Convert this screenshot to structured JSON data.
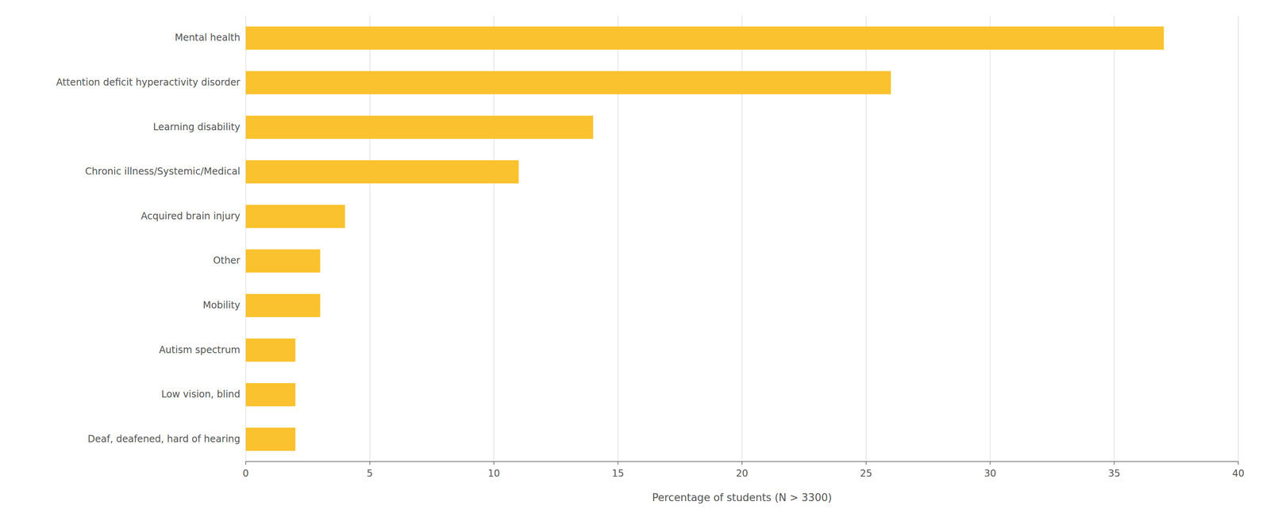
{
  "chart_data": {
    "type": "bar",
    "orientation": "horizontal",
    "categories": [
      "Mental health",
      "Attention deficit hyperactivity disorder",
      "Learning disability",
      "Chronic illness/Systemic/Medical",
      "Acquired brain injury",
      "Other",
      "Mobility",
      "Autism spectrum",
      "Low vision, blind",
      "Deaf, deafened, hard of hearing"
    ],
    "values": [
      37,
      26,
      14,
      11,
      4,
      3,
      3,
      2,
      2,
      2
    ],
    "color": "#F9C22E",
    "xlabel": "Percentage of students (N > 3300)",
    "xlim": [
      0,
      40
    ],
    "xticks": [
      0,
      5,
      10,
      15,
      20,
      25,
      30,
      35,
      40
    ],
    "grid": true
  }
}
